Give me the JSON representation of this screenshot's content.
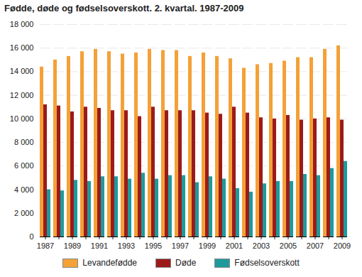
{
  "chart_data": {
    "type": "bar",
    "title": "Fødde, døde og fødselsoverskott. 2. kvartal. 1987-2009",
    "categories": [
      "1987",
      null,
      "1989",
      null,
      "1991",
      null,
      "1993",
      null,
      "1995",
      null,
      "1997",
      null,
      "1999",
      null,
      "2001",
      null,
      "2003",
      null,
      "2005",
      null,
      "2007",
      null,
      "2009"
    ],
    "series": [
      {
        "name": "Levandefødde",
        "color": "#f4a138",
        "values": [
          14400,
          15000,
          15300,
          15700,
          15900,
          15700,
          15500,
          15600,
          15900,
          15800,
          15800,
          15300,
          15600,
          15300,
          15100,
          14300,
          14600,
          14700,
          14900,
          15200,
          15200,
          15900,
          16200
        ]
      },
      {
        "name": "Døde",
        "color": "#9b1b1b",
        "values": [
          11200,
          11100,
          10600,
          11000,
          10900,
          10700,
          10700,
          10200,
          11000,
          10700,
          10700,
          10700,
          10500,
          10400,
          11000,
          10500,
          10100,
          10000,
          10300,
          9900,
          10000,
          10100,
          9900
        ]
      },
      {
        "name": "Fødselsoverskott",
        "color": "#1e9a9c",
        "values": [
          4000,
          3900,
          4800,
          4700,
          5100,
          5100,
          4900,
          5400,
          4900,
          5200,
          5200,
          4600,
          5100,
          4900,
          4100,
          3800,
          4500,
          4700,
          4700,
          5300,
          5200,
          5800,
          6400
        ]
      }
    ],
    "ylim": [
      0,
      18000
    ],
    "yticks": [
      0,
      {
        "value": 2000,
        "label": "2 000"
      },
      {
        "value": 4000,
        "label": "4 000"
      },
      {
        "value": 6000,
        "label": "6 000"
      },
      {
        "value": 8000,
        "label": "8 000"
      },
      {
        "value": 10000,
        "label": "10 000"
      },
      {
        "value": 12000,
        "label": "12 000"
      },
      {
        "value": 14000,
        "label": "14 000"
      },
      {
        "value": 16000,
        "label": "16 000"
      },
      {
        "value": 18000,
        "label": "18 000"
      }
    ],
    "grid": true,
    "legend": "bottom"
  }
}
